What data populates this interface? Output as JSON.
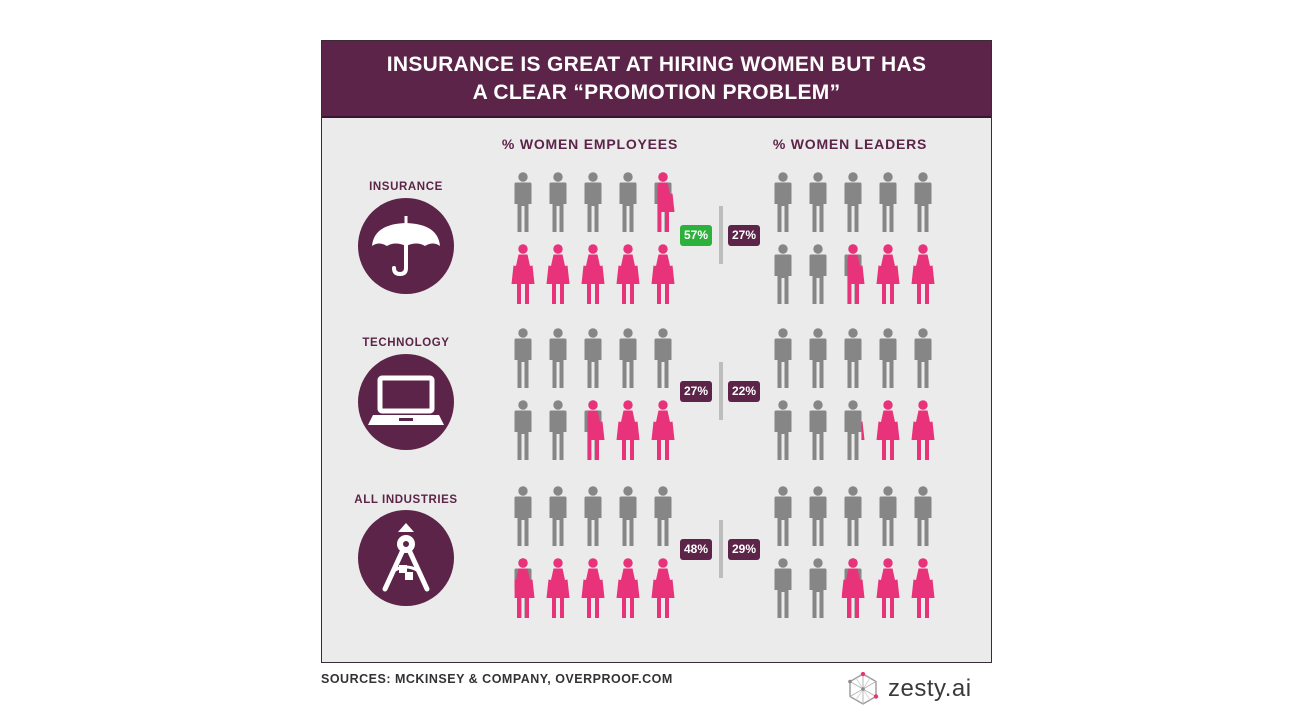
{
  "title_line1": "INSURANCE IS GREAT AT HIRING WOMEN BUT HAS",
  "title_line2": "A CLEAR “PROMOTION PROBLEM”",
  "column_headers": {
    "employees": "% WOMEN EMPLOYEES",
    "leaders": "% WOMEN LEADERS"
  },
  "sources": "SOURCES: MCKINSEY & COMPANY, OVERPROOF.COM",
  "logo_text": "zesty.ai",
  "colors": {
    "banner": "#5c2448",
    "women": "#e8327a",
    "men": "#868686",
    "highlight": "#2cb23c",
    "badge": "#5c2448"
  },
  "chart_data": {
    "type": "pictograph",
    "icons_per_group": 10,
    "series": [
      {
        "name": "% WOMEN EMPLOYEES",
        "values": [
          57,
          27,
          48
        ]
      },
      {
        "name": "% WOMEN LEADERS",
        "values": [
          27,
          22,
          29
        ]
      }
    ],
    "rows": [
      {
        "industry": "INSURANCE",
        "icon": "umbrella-icon",
        "employees_pct": 57,
        "leaders_pct": 27,
        "employees_label": "57%",
        "leaders_label": "27%",
        "employees_highlight": true
      },
      {
        "industry": "TECHNOLOGY",
        "icon": "laptop-icon",
        "employees_pct": 27,
        "leaders_pct": 22,
        "employees_label": "27%",
        "leaders_label": "22%",
        "employees_highlight": false
      },
      {
        "industry": "ALL INDUSTRIES",
        "icon": "compass-icon",
        "employees_pct": 48,
        "leaders_pct": 29,
        "employees_label": "48%",
        "leaders_label": "29%",
        "employees_highlight": false
      }
    ]
  }
}
